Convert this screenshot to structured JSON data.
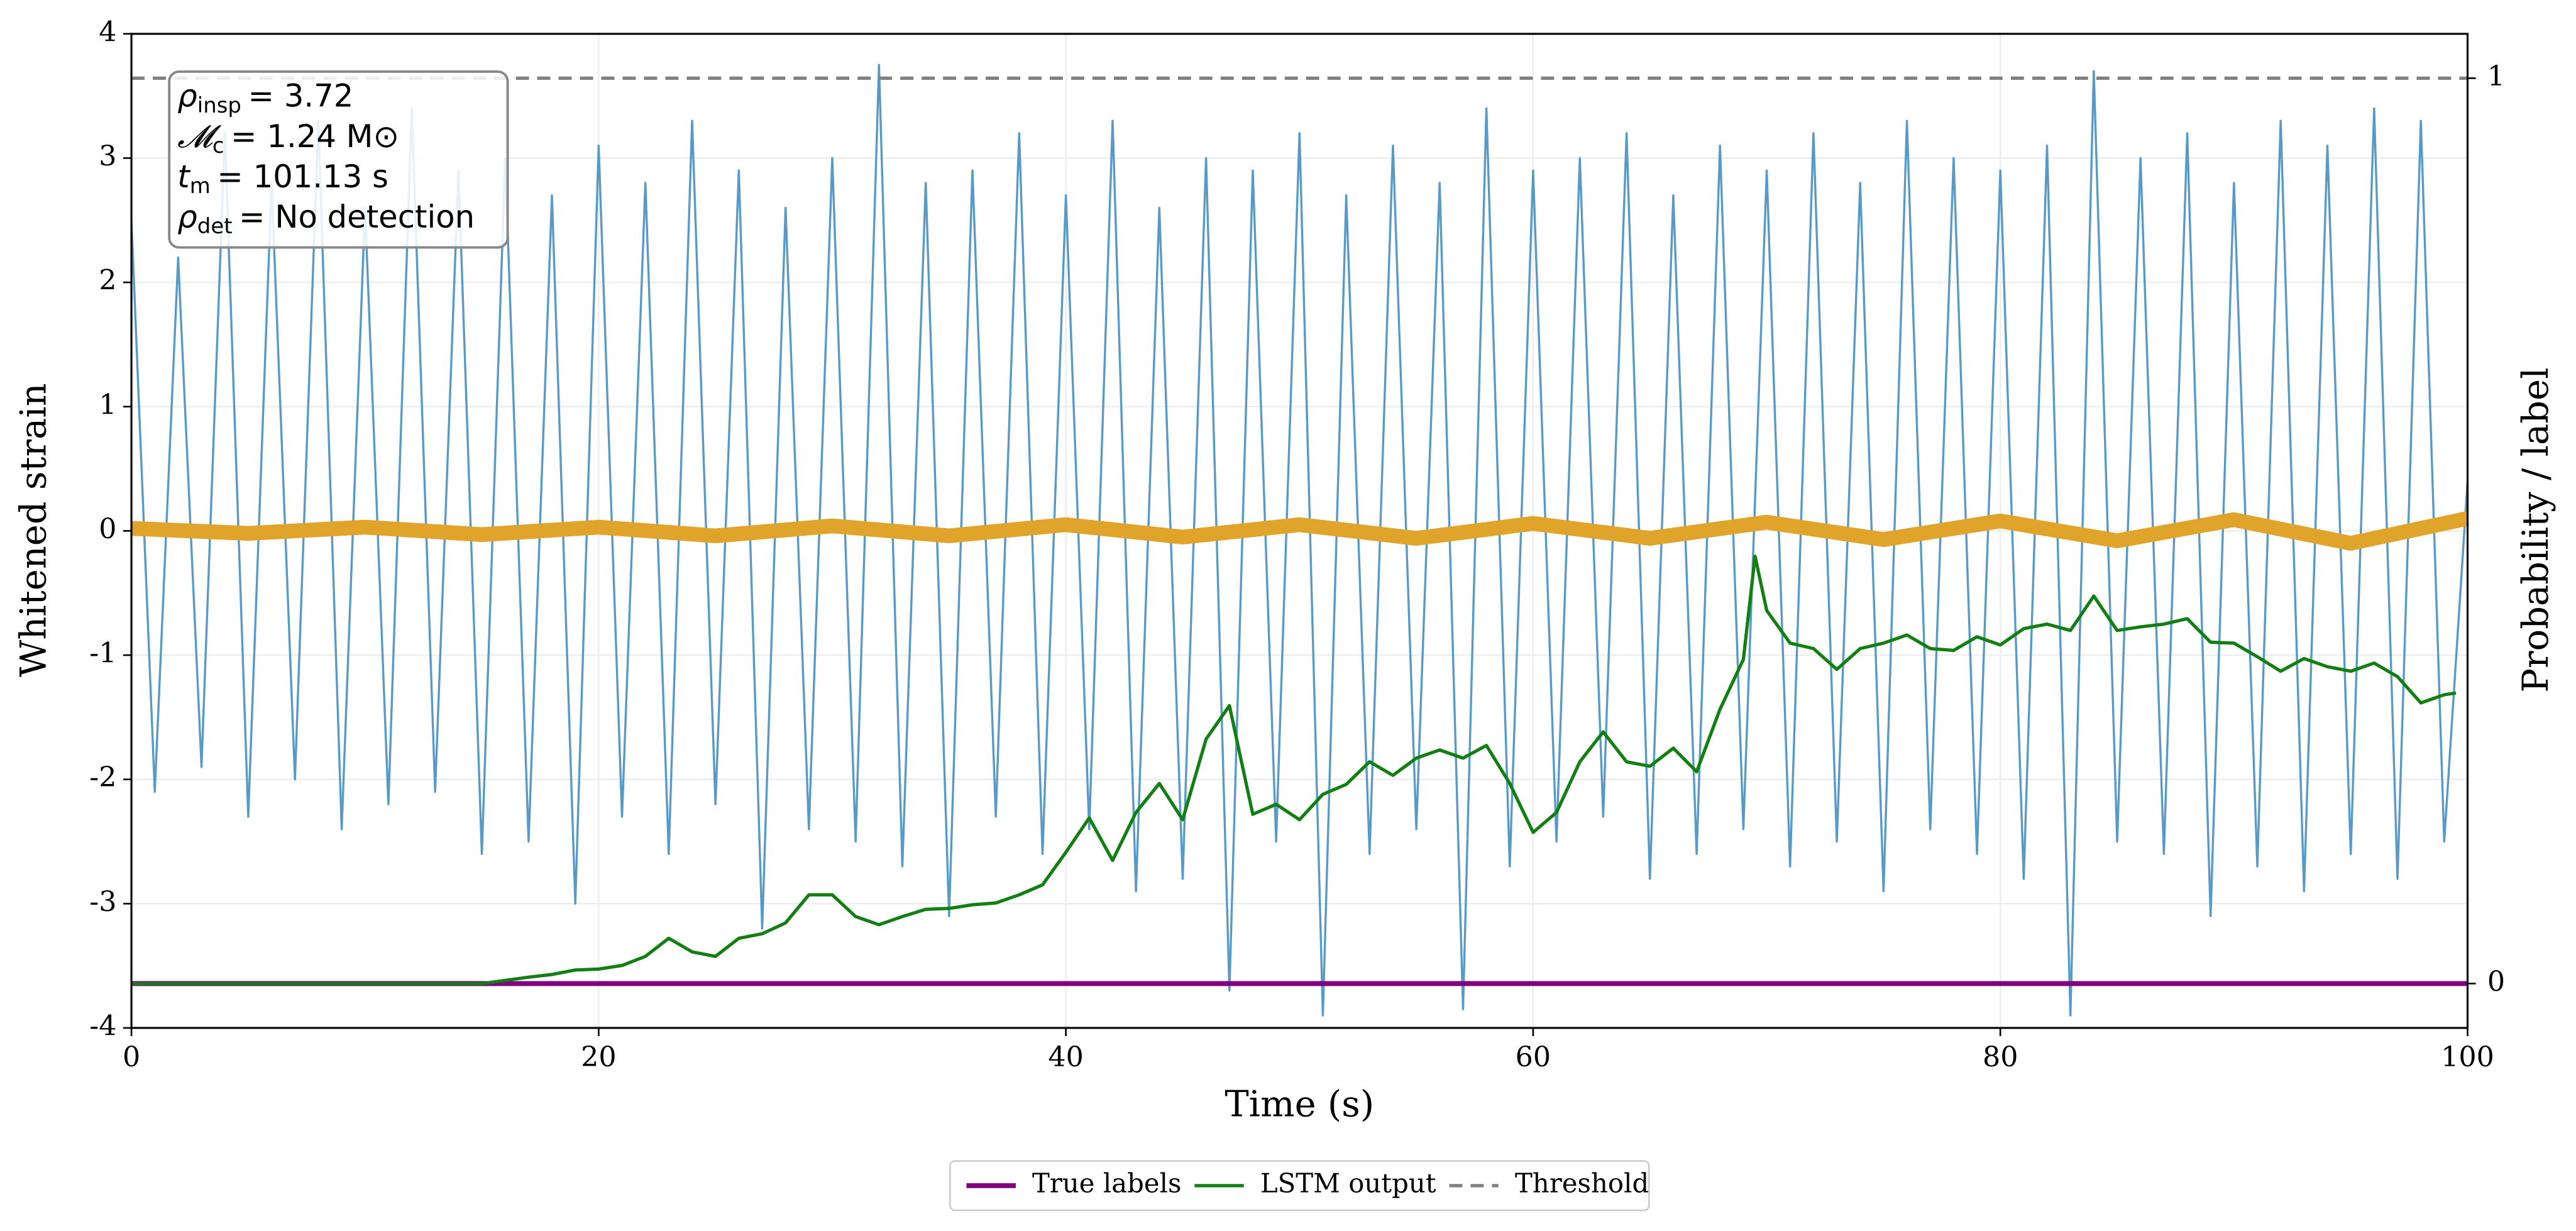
{
  "chart_data": {
    "type": "line",
    "xlabel": "Time (s)",
    "ylabel": "Whitened strain",
    "y2label": "Probability / label",
    "xlim": [
      0,
      100
    ],
    "xticks": [
      0,
      20,
      40,
      60,
      80,
      100
    ],
    "ylim": [
      -4,
      4
    ],
    "yticks": [
      -4,
      -3,
      -2,
      -1,
      0,
      1,
      2,
      3,
      4
    ],
    "y2lim": [
      -0.049,
      1.049
    ],
    "y2ticks": [
      0,
      1
    ],
    "grid": true,
    "legend": "bottom",
    "annotations": [
      {
        "symbol": "ρ",
        "subscript": "insp",
        "text": "= 3.72"
      },
      {
        "symbol": "𝓜",
        "subscript": "c",
        "text": "= 1.24 M⊙"
      },
      {
        "symbol": "t",
        "subscript": "m",
        "text": "= 101.13 s"
      },
      {
        "symbol": "ρ",
        "subscript": "det",
        "text": "= No detection"
      }
    ],
    "series": [
      {
        "color": "#5799c7",
        "width": 1.3,
        "x": [
          0,
          1,
          2,
          3,
          4,
          5,
          6,
          7,
          8,
          9,
          10,
          11,
          12,
          13,
          14,
          15,
          16,
          17,
          18,
          19,
          20,
          21,
          22,
          23,
          24,
          25,
          26,
          27,
          28,
          29,
          30,
          31,
          32,
          33,
          34,
          35,
          36,
          37,
          38,
          39,
          40,
          41,
          42,
          43,
          44,
          45,
          46,
          47,
          48,
          49,
          50,
          51,
          52,
          53,
          54,
          55,
          56,
          57,
          58,
          59,
          60,
          61,
          62,
          63,
          64,
          65,
          66,
          67,
          68,
          69,
          70,
          71,
          72,
          73,
          74,
          75,
          76,
          77,
          78,
          79,
          80,
          81,
          82,
          83,
          84,
          85,
          86,
          87,
          88,
          89,
          90,
          91,
          92,
          93,
          94,
          95,
          96,
          97,
          98,
          99,
          100
        ],
        "values": [
          2.5,
          -2.1,
          2.2,
          -1.9,
          3.2,
          -2.3,
          2.8,
          -2.0,
          3.3,
          -2.4,
          2.6,
          -2.2,
          3.4,
          -2.1,
          2.9,
          -2.6,
          3.0,
          -2.5,
          2.7,
          -3.0,
          3.1,
          -2.3,
          2.8,
          -2.6,
          3.3,
          -2.2,
          2.9,
          -3.2,
          2.6,
          -2.4,
          3.0,
          -2.5,
          3.75,
          -2.7,
          2.8,
          -3.1,
          2.9,
          -2.3,
          3.2,
          -2.6,
          2.7,
          -2.4,
          3.3,
          -2.9,
          2.6,
          -2.8,
          3.0,
          -3.7,
          2.9,
          -2.5,
          3.2,
          -3.9,
          2.7,
          -2.6,
          3.1,
          -2.4,
          2.8,
          -3.85,
          3.4,
          -2.7,
          2.9,
          -2.5,
          3.0,
          -2.3,
          3.2,
          -2.8,
          2.7,
          -2.6,
          3.1,
          -2.4,
          2.9,
          -2.7,
          3.2,
          -2.5,
          2.8,
          -2.9,
          3.3,
          -2.4,
          3.0,
          -2.6,
          2.9,
          -2.8,
          3.1,
          -3.9,
          3.7,
          -2.5,
          3.0,
          -2.6,
          3.2,
          -3.1,
          2.8,
          -2.7,
          3.3,
          -2.9,
          3.1,
          -2.6,
          3.4,
          -2.8,
          3.3,
          -2.5,
          0.4
        ]
      },
      {
        "color": "#e0a42a",
        "width": 9,
        "x": [
          0,
          5,
          10,
          15,
          20,
          25,
          30,
          35,
          40,
          45,
          50,
          55,
          60,
          65,
          70,
          75,
          80,
          85,
          90,
          95,
          100
        ],
        "values": [
          0.02,
          -0.02,
          0.03,
          -0.03,
          0.03,
          -0.04,
          0.04,
          -0.04,
          0.05,
          -0.05,
          0.05,
          -0.06,
          0.06,
          -0.06,
          0.07,
          -0.07,
          0.08,
          -0.08,
          0.09,
          -0.1,
          0.1
        ]
      },
      {
        "name": "True labels",
        "color": "#800080",
        "width": 3,
        "axis": "y2",
        "x": [
          0,
          100
        ],
        "values": [
          0,
          0
        ]
      },
      {
        "name": "LSTM output",
        "color": "#117f11",
        "width": 2,
        "axis": "y2",
        "x": [
          0,
          15,
          17,
          18,
          19,
          20,
          21,
          22,
          23,
          24,
          25,
          26,
          27,
          28,
          29,
          30,
          31,
          32,
          33,
          34,
          35,
          36,
          37,
          38,
          39,
          40,
          41,
          42,
          43,
          44,
          45,
          46,
          47,
          48,
          49,
          50,
          51,
          52,
          53,
          54,
          55,
          56,
          57,
          58,
          59,
          60,
          61,
          62,
          63,
          64,
          65,
          66,
          67,
          68,
          69,
          69.5,
          70,
          71,
          72,
          73,
          74,
          75,
          76,
          77,
          78,
          79,
          80,
          81,
          82,
          83,
          84,
          85,
          86,
          87,
          88,
          89,
          90,
          91,
          92,
          93,
          94,
          95,
          96,
          97,
          98,
          99,
          99.5
        ],
        "values": [
          0,
          0,
          0.007,
          0.01,
          0.015,
          0.016,
          0.02,
          0.03,
          0.05,
          0.035,
          0.03,
          0.05,
          0.055,
          0.067,
          0.098,
          0.098,
          0.074,
          0.065,
          0.074,
          0.082,
          0.083,
          0.087,
          0.089,
          0.098,
          0.109,
          0.145,
          0.183,
          0.136,
          0.189,
          0.221,
          0.181,
          0.27,
          0.307,
          0.187,
          0.198,
          0.181,
          0.209,
          0.22,
          0.245,
          0.23,
          0.249,
          0.258,
          0.249,
          0.263,
          0.221,
          0.167,
          0.189,
          0.245,
          0.278,
          0.245,
          0.24,
          0.26,
          0.234,
          0.303,
          0.358,
          0.472,
          0.412,
          0.376,
          0.37,
          0.347,
          0.37,
          0.376,
          0.385,
          0.37,
          0.368,
          0.383,
          0.374,
          0.392,
          0.397,
          0.39,
          0.428,
          0.39,
          0.394,
          0.397,
          0.403,
          0.377,
          0.376,
          0.361,
          0.345,
          0.359,
          0.35,
          0.345,
          0.354,
          0.339,
          0.31,
          0.319,
          0.321
        ]
      },
      {
        "name": "Threshold",
        "color": "#808080",
        "width": 2,
        "axis": "y2",
        "dashed": true,
        "x": [
          0,
          100
        ],
        "values": [
          1,
          1
        ]
      }
    ]
  }
}
